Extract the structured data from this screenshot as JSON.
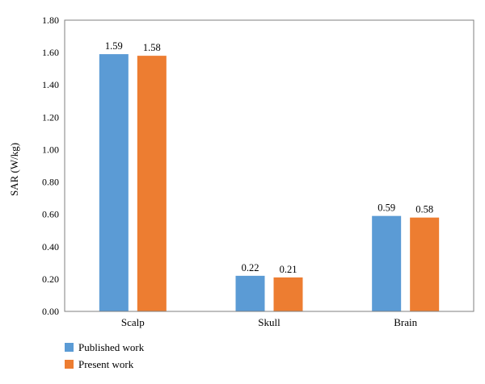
{
  "chart_data": {
    "type": "bar",
    "categories": [
      "Scalp",
      "Skull",
      "Brain"
    ],
    "series": [
      {
        "name": "Published work",
        "values": [
          1.59,
          0.22,
          0.59
        ],
        "color": "#5b9bd5",
        "labels": [
          "1.59",
          "0.22",
          "0.59"
        ]
      },
      {
        "name": "Present work",
        "values": [
          1.58,
          0.21,
          0.58
        ],
        "color": "#ed7d31",
        "labels": [
          "1.58",
          "0.21",
          "0.58"
        ]
      }
    ],
    "ylabel": "SAR (W/kg)",
    "xlabel": "",
    "ylim": [
      0,
      1.8
    ],
    "yticks": [
      "0.00",
      "0.20",
      "0.40",
      "0.60",
      "0.80",
      "1.00",
      "1.20",
      "1.40",
      "1.60",
      "1.80"
    ],
    "grid": false,
    "legend": "bottom-left"
  }
}
